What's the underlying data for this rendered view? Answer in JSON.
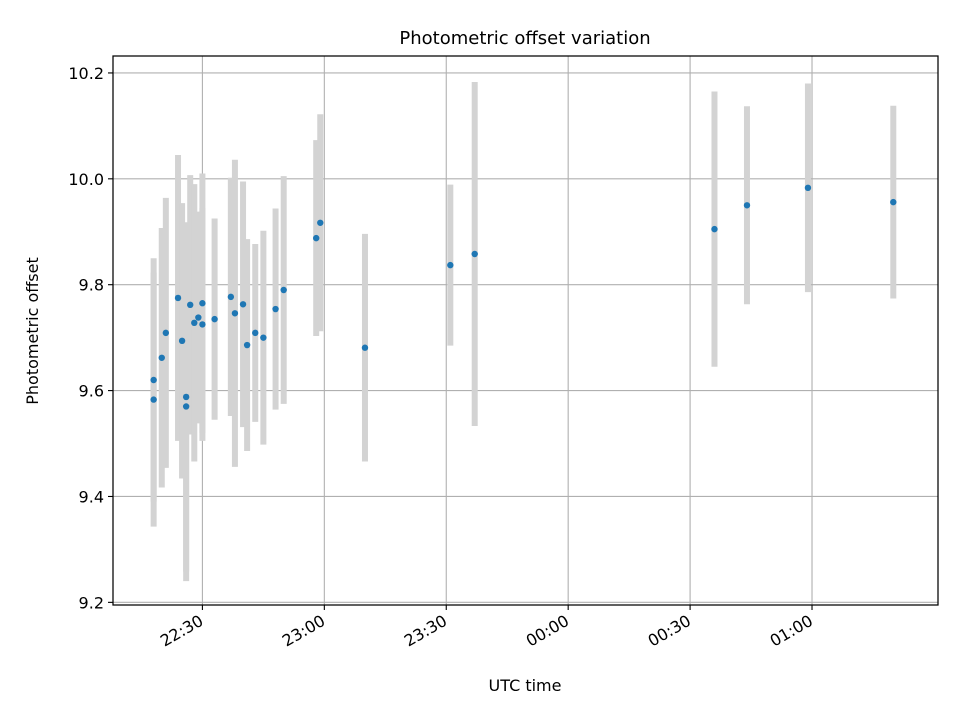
{
  "chart_data": {
    "type": "scatter",
    "title": "Photometric offset variation",
    "xlabel": "UTC time",
    "ylabel": "Photometric offset",
    "xlim": [
      "22:08",
      "01:31"
    ],
    "ylim": [
      9.195,
      10.232
    ],
    "x_ticks": [
      "22:30",
      "23:00",
      "23:30",
      "00:00",
      "00:30",
      "01:00"
    ],
    "y_ticks": [
      "9.2",
      "9.4",
      "9.6",
      "9.8",
      "10.0",
      "10.2"
    ],
    "grid": true,
    "marker_color": "#1f77b4",
    "errorbar_color": "#d3d3d3",
    "series": [
      {
        "points": [
          {
            "x": "22:18",
            "y": 9.583,
            "err": 0.24
          },
          {
            "x": "22:18",
            "y": 9.62,
            "err": 0.23
          },
          {
            "x": "22:20",
            "y": 9.662,
            "err": 0.245
          },
          {
            "x": "22:21",
            "y": 9.709,
            "err": 0.255
          },
          {
            "x": "22:24",
            "y": 9.775,
            "err": 0.27
          },
          {
            "x": "22:25",
            "y": 9.694,
            "err": 0.26
          },
          {
            "x": "22:26",
            "y": 9.57,
            "err": 0.33
          },
          {
            "x": "22:26",
            "y": 9.588,
            "err": 0.33
          },
          {
            "x": "22:27",
            "y": 9.762,
            "err": 0.245
          },
          {
            "x": "22:28",
            "y": 9.728,
            "err": 0.262
          },
          {
            "x": "22:29",
            "y": 9.738,
            "err": 0.2
          },
          {
            "x": "22:30",
            "y": 9.725,
            "err": 0.22
          },
          {
            "x": "22:30",
            "y": 9.765,
            "err": 0.245
          },
          {
            "x": "22:33",
            "y": 9.735,
            "err": 0.19
          },
          {
            "x": "22:37",
            "y": 9.777,
            "err": 0.225
          },
          {
            "x": "22:38",
            "y": 9.746,
            "err": 0.29
          },
          {
            "x": "22:40",
            "y": 9.763,
            "err": 0.232
          },
          {
            "x": "22:41",
            "y": 9.686,
            "err": 0.2
          },
          {
            "x": "22:43",
            "y": 9.709,
            "err": 0.168
          },
          {
            "x": "22:45",
            "y": 9.7,
            "err": 0.202
          },
          {
            "x": "22:48",
            "y": 9.754,
            "err": 0.19
          },
          {
            "x": "22:50",
            "y": 9.79,
            "err": 0.215
          },
          {
            "x": "22:58",
            "y": 9.888,
            "err": 0.185
          },
          {
            "x": "22:59",
            "y": 9.917,
            "err": 0.205
          },
          {
            "x": "23:10",
            "y": 9.681,
            "err": 0.215
          },
          {
            "x": "23:31",
            "y": 9.837,
            "err": 0.152
          },
          {
            "x": "23:37",
            "y": 9.858,
            "err": 0.325
          },
          {
            "x": "00:36",
            "y": 9.905,
            "err": 0.26
          },
          {
            "x": "00:44",
            "y": 9.95,
            "err": 0.187
          },
          {
            "x": "00:59",
            "y": 9.983,
            "err": 0.197
          },
          {
            "x": "01:20",
            "y": 9.956,
            "err": 0.182
          }
        ]
      }
    ]
  }
}
